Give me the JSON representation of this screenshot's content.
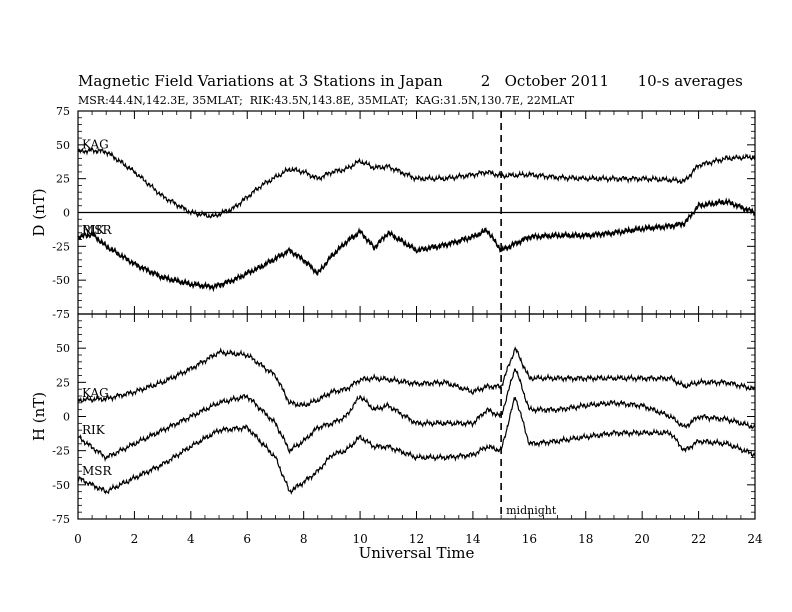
{
  "header": {
    "title": "Magnetic Field Variations at 3 Stations in Japan        2   October 2011      10-s averages",
    "subtitle": "MSR:44.4N,142.3E, 35MLAT;  RIK:43.5N,143.8E, 35MLAT;  KAG:31.5N,130.7E, 22MLAT"
  },
  "chart_data": [
    {
      "type": "line",
      "ylabel": "D (nT)",
      "ylim": [
        -75,
        75
      ],
      "yticks": [
        -75,
        -50,
        -25,
        0,
        25,
        50,
        75
      ],
      "zero_line": true,
      "series": [
        {
          "name": "KAG",
          "x": [
            0,
            0.5,
            1,
            2,
            3,
            4,
            4.8,
            5.5,
            6.5,
            7.5,
            8,
            8.5,
            9,
            9.5,
            10,
            10.5,
            11,
            12,
            13,
            14,
            14.5,
            15,
            16,
            17,
            18,
            19,
            20,
            21,
            21.5,
            22,
            23,
            24
          ],
          "y": [
            45,
            46,
            45,
            30,
            12,
            0,
            -3,
            3,
            20,
            32,
            30,
            25,
            30,
            32,
            38,
            33,
            34,
            25,
            25,
            28,
            30,
            27,
            28,
            26,
            25,
            25,
            25,
            24,
            23,
            35,
            40,
            41
          ]
        },
        {
          "name": "RIK",
          "x": [
            0,
            0.5,
            1,
            2,
            3,
            4,
            4.8,
            5.5,
            6.5,
            7.5,
            8,
            8.5,
            9,
            9.5,
            10,
            10.5,
            11,
            12,
            13,
            14,
            14.5,
            15,
            16,
            17,
            18,
            19,
            20,
            21,
            21.5,
            22,
            23,
            24
          ],
          "y": [
            -18,
            -16,
            -25,
            -38,
            -48,
            -53,
            -55,
            -50,
            -40,
            -28,
            -35,
            -45,
            -32,
            -22,
            -14,
            -26,
            -15,
            -28,
            -24,
            -18,
            -13,
            -28,
            -18,
            -17,
            -17,
            -15,
            -12,
            -10,
            -8,
            5,
            8,
            0
          ]
        },
        {
          "name": "MSR",
          "x": [
            0,
            0.5,
            1,
            2,
            3,
            4,
            4.8,
            5.5,
            6.5,
            7.5,
            8,
            8.5,
            9,
            9.5,
            10,
            10.5,
            11,
            12,
            13,
            14,
            14.5,
            15,
            16,
            17,
            18,
            19,
            20,
            21,
            21.5,
            22,
            23,
            24
          ],
          "y": [
            -18,
            -16,
            -25,
            -38,
            -48,
            -53,
            -55,
            -50,
            -40,
            -28,
            -35,
            -45,
            -32,
            -22,
            -14,
            -26,
            -15,
            -28,
            -24,
            -18,
            -13,
            -28,
            -18,
            -17,
            -17,
            -15,
            -12,
            -10,
            -8,
            5,
            8,
            0
          ]
        }
      ]
    },
    {
      "type": "line",
      "ylabel": "H (nT)",
      "xlabel": "Universal Time",
      "ylim": [
        -75,
        75
      ],
      "yticks": [
        -75,
        -50,
        -25,
        0,
        25,
        50
      ],
      "xlim": [
        0,
        24
      ],
      "xticks": [
        0,
        2,
        4,
        6,
        8,
        10,
        12,
        14,
        16,
        18,
        20,
        22,
        24
      ],
      "series": [
        {
          "name": "KAG",
          "x": [
            0,
            1,
            2,
            3,
            4,
            5,
            6,
            7,
            7.5,
            8,
            8.5,
            9,
            9.5,
            10,
            10.5,
            11,
            12,
            13,
            14,
            14.5,
            15,
            15.5,
            16,
            17,
            18,
            19,
            20,
            21,
            21.5,
            22,
            23,
            24
          ],
          "y": [
            12,
            13,
            18,
            25,
            35,
            47,
            45,
            30,
            10,
            8,
            12,
            18,
            20,
            27,
            28,
            27,
            24,
            25,
            18,
            22,
            22,
            50,
            28,
            28,
            28,
            28,
            28,
            28,
            22,
            25,
            25,
            20
          ]
        },
        {
          "name": "RIK",
          "x": [
            0,
            1,
            2,
            3,
            4,
            5,
            6,
            7,
            7.5,
            8,
            8.5,
            9,
            9.5,
            10,
            10.5,
            11,
            12,
            13,
            14,
            14.5,
            15,
            15.5,
            16,
            17,
            18,
            19,
            20,
            21,
            21.5,
            22,
            23,
            24
          ],
          "y": [
            -15,
            -30,
            -20,
            -10,
            0,
            10,
            15,
            -5,
            -25,
            -18,
            -8,
            -5,
            0,
            15,
            5,
            8,
            -5,
            -5,
            -5,
            5,
            0,
            36,
            5,
            5,
            8,
            10,
            8,
            0,
            -8,
            0,
            -2,
            -8
          ]
        },
        {
          "name": "MSR",
          "x": [
            0,
            1,
            2,
            3,
            4,
            5,
            6,
            7,
            7.5,
            8,
            8.5,
            9,
            9.5,
            10,
            10.5,
            11,
            12,
            13,
            14,
            14.5,
            15,
            15.5,
            16,
            17,
            18,
            19,
            20,
            21,
            21.5,
            22,
            23,
            24
          ],
          "y": [
            -45,
            -55,
            -45,
            -35,
            -22,
            -10,
            -8,
            -30,
            -55,
            -48,
            -40,
            -28,
            -25,
            -15,
            -22,
            -22,
            -30,
            -30,
            -28,
            -22,
            -25,
            15,
            -20,
            -18,
            -15,
            -12,
            -12,
            -12,
            -25,
            -18,
            -20,
            -28
          ]
        }
      ],
      "annotations": [
        {
          "x": 15,
          "label": "midnight",
          "style": "dashed-vertical"
        }
      ]
    }
  ]
}
